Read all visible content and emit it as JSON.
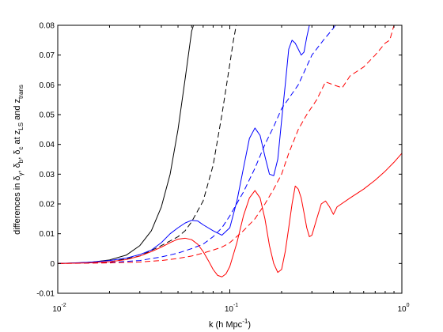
{
  "chart_data": {
    "type": "line",
    "title": "",
    "xlabel": {
      "main": "k (h Mpc",
      "sup": "-1",
      "end": ")"
    },
    "ylabel": {
      "prefix": "differences in δ",
      "sub1": "γ",
      "mid1": ", δ",
      "sub2": "b",
      "mid2": ", δ",
      "sub3": "c",
      "mid3": " at z",
      "sub4": "LS",
      "mid4": " and z",
      "sub5": "trans"
    },
    "xscale": "log",
    "xlim": [
      0.01,
      1
    ],
    "ylim": [
      -0.01,
      0.08
    ],
    "x_ticks": [
      0.01,
      0.1,
      1
    ],
    "x_tick_labels": [
      {
        "base": "10",
        "exp": "-2"
      },
      {
        "base": "10",
        "exp": "-1"
      },
      {
        "base": "10",
        "exp": "0"
      }
    ],
    "y_ticks": [
      -0.01,
      0,
      0.01,
      0.02,
      0.03,
      0.04,
      0.05,
      0.06,
      0.07,
      0.08
    ],
    "y_tick_labels": [
      "-0.01",
      "0",
      "0.01",
      "0.02",
      "0.03",
      "0.04",
      "0.05",
      "0.06",
      "0.07",
      "0.08"
    ],
    "grid": false,
    "legend": "none",
    "series": [
      {
        "color": "#000000",
        "dash": "solid",
        "points": [
          [
            0.01,
            0
          ],
          [
            0.013,
            0.0002
          ],
          [
            0.016,
            0.0005
          ],
          [
            0.02,
            0.0012
          ],
          [
            0.025,
            0.0028
          ],
          [
            0.03,
            0.006
          ],
          [
            0.035,
            0.011
          ],
          [
            0.04,
            0.019
          ],
          [
            0.045,
            0.03
          ],
          [
            0.05,
            0.045
          ],
          [
            0.055,
            0.062
          ],
          [
            0.06,
            0.078
          ],
          [
            0.0615,
            0.08
          ]
        ]
      },
      {
        "color": "#000000",
        "dash": "dashed",
        "points": [
          [
            0.01,
            0
          ],
          [
            0.02,
            0.0005
          ],
          [
            0.03,
            0.0025
          ],
          [
            0.04,
            0.006
          ],
          [
            0.05,
            0.009
          ],
          [
            0.055,
            0.011
          ],
          [
            0.06,
            0.014
          ],
          [
            0.07,
            0.021
          ],
          [
            0.08,
            0.033
          ],
          [
            0.09,
            0.05
          ],
          [
            0.1,
            0.067
          ],
          [
            0.105,
            0.075
          ],
          [
            0.109,
            0.08
          ]
        ]
      },
      {
        "color": "#0000ff",
        "dash": "solid",
        "points": [
          [
            0.01,
            0
          ],
          [
            0.015,
            0.0004
          ],
          [
            0.02,
            0.001
          ],
          [
            0.025,
            0.0018
          ],
          [
            0.03,
            0.003
          ],
          [
            0.035,
            0.0045
          ],
          [
            0.04,
            0.007
          ],
          [
            0.045,
            0.01
          ],
          [
            0.05,
            0.012
          ],
          [
            0.055,
            0.0136
          ],
          [
            0.06,
            0.0145
          ],
          [
            0.065,
            0.0143
          ],
          [
            0.07,
            0.013
          ],
          [
            0.08,
            0.011
          ],
          [
            0.09,
            0.0095
          ],
          [
            0.1,
            0.012
          ],
          [
            0.11,
            0.021
          ],
          [
            0.12,
            0.032
          ],
          [
            0.13,
            0.042
          ],
          [
            0.14,
            0.0455
          ],
          [
            0.15,
            0.043
          ],
          [
            0.16,
            0.036
          ],
          [
            0.17,
            0.03
          ],
          [
            0.18,
            0.0295
          ],
          [
            0.19,
            0.035
          ],
          [
            0.2,
            0.048
          ],
          [
            0.21,
            0.06
          ],
          [
            0.22,
            0.072
          ],
          [
            0.23,
            0.075
          ],
          [
            0.24,
            0.074
          ],
          [
            0.25,
            0.072
          ],
          [
            0.26,
            0.07
          ],
          [
            0.27,
            0.071
          ],
          [
            0.28,
            0.076
          ],
          [
            0.29,
            0.08
          ]
        ]
      },
      {
        "color": "#0000ff",
        "dash": "dashed",
        "points": [
          [
            0.01,
            0
          ],
          [
            0.02,
            0.0003
          ],
          [
            0.03,
            0.001
          ],
          [
            0.04,
            0.0022
          ],
          [
            0.05,
            0.0035
          ],
          [
            0.06,
            0.005
          ],
          [
            0.07,
            0.0065
          ],
          [
            0.08,
            0.009
          ],
          [
            0.09,
            0.012
          ],
          [
            0.1,
            0.016
          ],
          [
            0.12,
            0.024
          ],
          [
            0.14,
            0.032
          ],
          [
            0.16,
            0.04
          ],
          [
            0.18,
            0.046
          ],
          [
            0.2,
            0.052
          ],
          [
            0.25,
            0.06
          ],
          [
            0.3,
            0.07
          ],
          [
            0.35,
            0.075
          ],
          [
            0.4,
            0.079
          ],
          [
            0.41,
            0.08
          ]
        ]
      },
      {
        "color": "#ff0000",
        "dash": "solid",
        "points": [
          [
            0.01,
            0
          ],
          [
            0.015,
            0.0002
          ],
          [
            0.02,
            0.0006
          ],
          [
            0.025,
            0.0013
          ],
          [
            0.03,
            0.0025
          ],
          [
            0.035,
            0.004
          ],
          [
            0.04,
            0.0055
          ],
          [
            0.045,
            0.007
          ],
          [
            0.05,
            0.0082
          ],
          [
            0.055,
            0.0085
          ],
          [
            0.06,
            0.008
          ],
          [
            0.065,
            0.0065
          ],
          [
            0.07,
            0.004
          ],
          [
            0.075,
            0.001
          ],
          [
            0.08,
            -0.002
          ],
          [
            0.085,
            -0.004
          ],
          [
            0.09,
            -0.0045
          ],
          [
            0.095,
            -0.0035
          ],
          [
            0.1,
            -0.001
          ],
          [
            0.11,
            0.007
          ],
          [
            0.12,
            0.016
          ],
          [
            0.13,
            0.022
          ],
          [
            0.14,
            0.0245
          ],
          [
            0.15,
            0.022
          ],
          [
            0.16,
            0.015
          ],
          [
            0.17,
            0.006
          ],
          [
            0.18,
            0
          ],
          [
            0.19,
            -0.003
          ],
          [
            0.2,
            -0.002
          ],
          [
            0.21,
            0.004
          ],
          [
            0.22,
            0.012
          ],
          [
            0.23,
            0.02
          ],
          [
            0.24,
            0.026
          ],
          [
            0.25,
            0.025
          ],
          [
            0.26,
            0.022
          ],
          [
            0.27,
            0.017
          ],
          [
            0.28,
            0.012
          ],
          [
            0.29,
            0.009
          ],
          [
            0.3,
            0.0095
          ],
          [
            0.32,
            0.015
          ],
          [
            0.34,
            0.02
          ],
          [
            0.36,
            0.021
          ],
          [
            0.38,
            0.019
          ],
          [
            0.4,
            0.0165
          ],
          [
            0.42,
            0.019
          ],
          [
            0.5,
            0.022
          ],
          [
            0.6,
            0.025
          ],
          [
            0.7,
            0.028
          ],
          [
            0.8,
            0.031
          ],
          [
            0.9,
            0.034
          ],
          [
            1.0,
            0.037
          ]
        ]
      },
      {
        "color": "#ff0000",
        "dash": "dashed",
        "points": [
          [
            0.01,
            0
          ],
          [
            0.02,
            0.0002
          ],
          [
            0.03,
            0.0005
          ],
          [
            0.04,
            0.001
          ],
          [
            0.05,
            0.0017
          ],
          [
            0.06,
            0.0025
          ],
          [
            0.07,
            0.0035
          ],
          [
            0.08,
            0.0045
          ],
          [
            0.09,
            0.0055
          ],
          [
            0.1,
            0.007
          ],
          [
            0.12,
            0.011
          ],
          [
            0.14,
            0.015
          ],
          [
            0.16,
            0.02
          ],
          [
            0.18,
            0.025
          ],
          [
            0.2,
            0.03
          ],
          [
            0.22,
            0.037
          ],
          [
            0.25,
            0.045
          ],
          [
            0.28,
            0.05
          ],
          [
            0.32,
            0.055
          ],
          [
            0.36,
            0.061
          ],
          [
            0.4,
            0.06
          ],
          [
            0.45,
            0.059
          ],
          [
            0.5,
            0.063
          ],
          [
            0.6,
            0.066
          ],
          [
            0.7,
            0.07
          ],
          [
            0.8,
            0.074
          ],
          [
            0.85,
            0.075
          ],
          [
            0.9,
            0.08
          ]
        ]
      }
    ]
  }
}
